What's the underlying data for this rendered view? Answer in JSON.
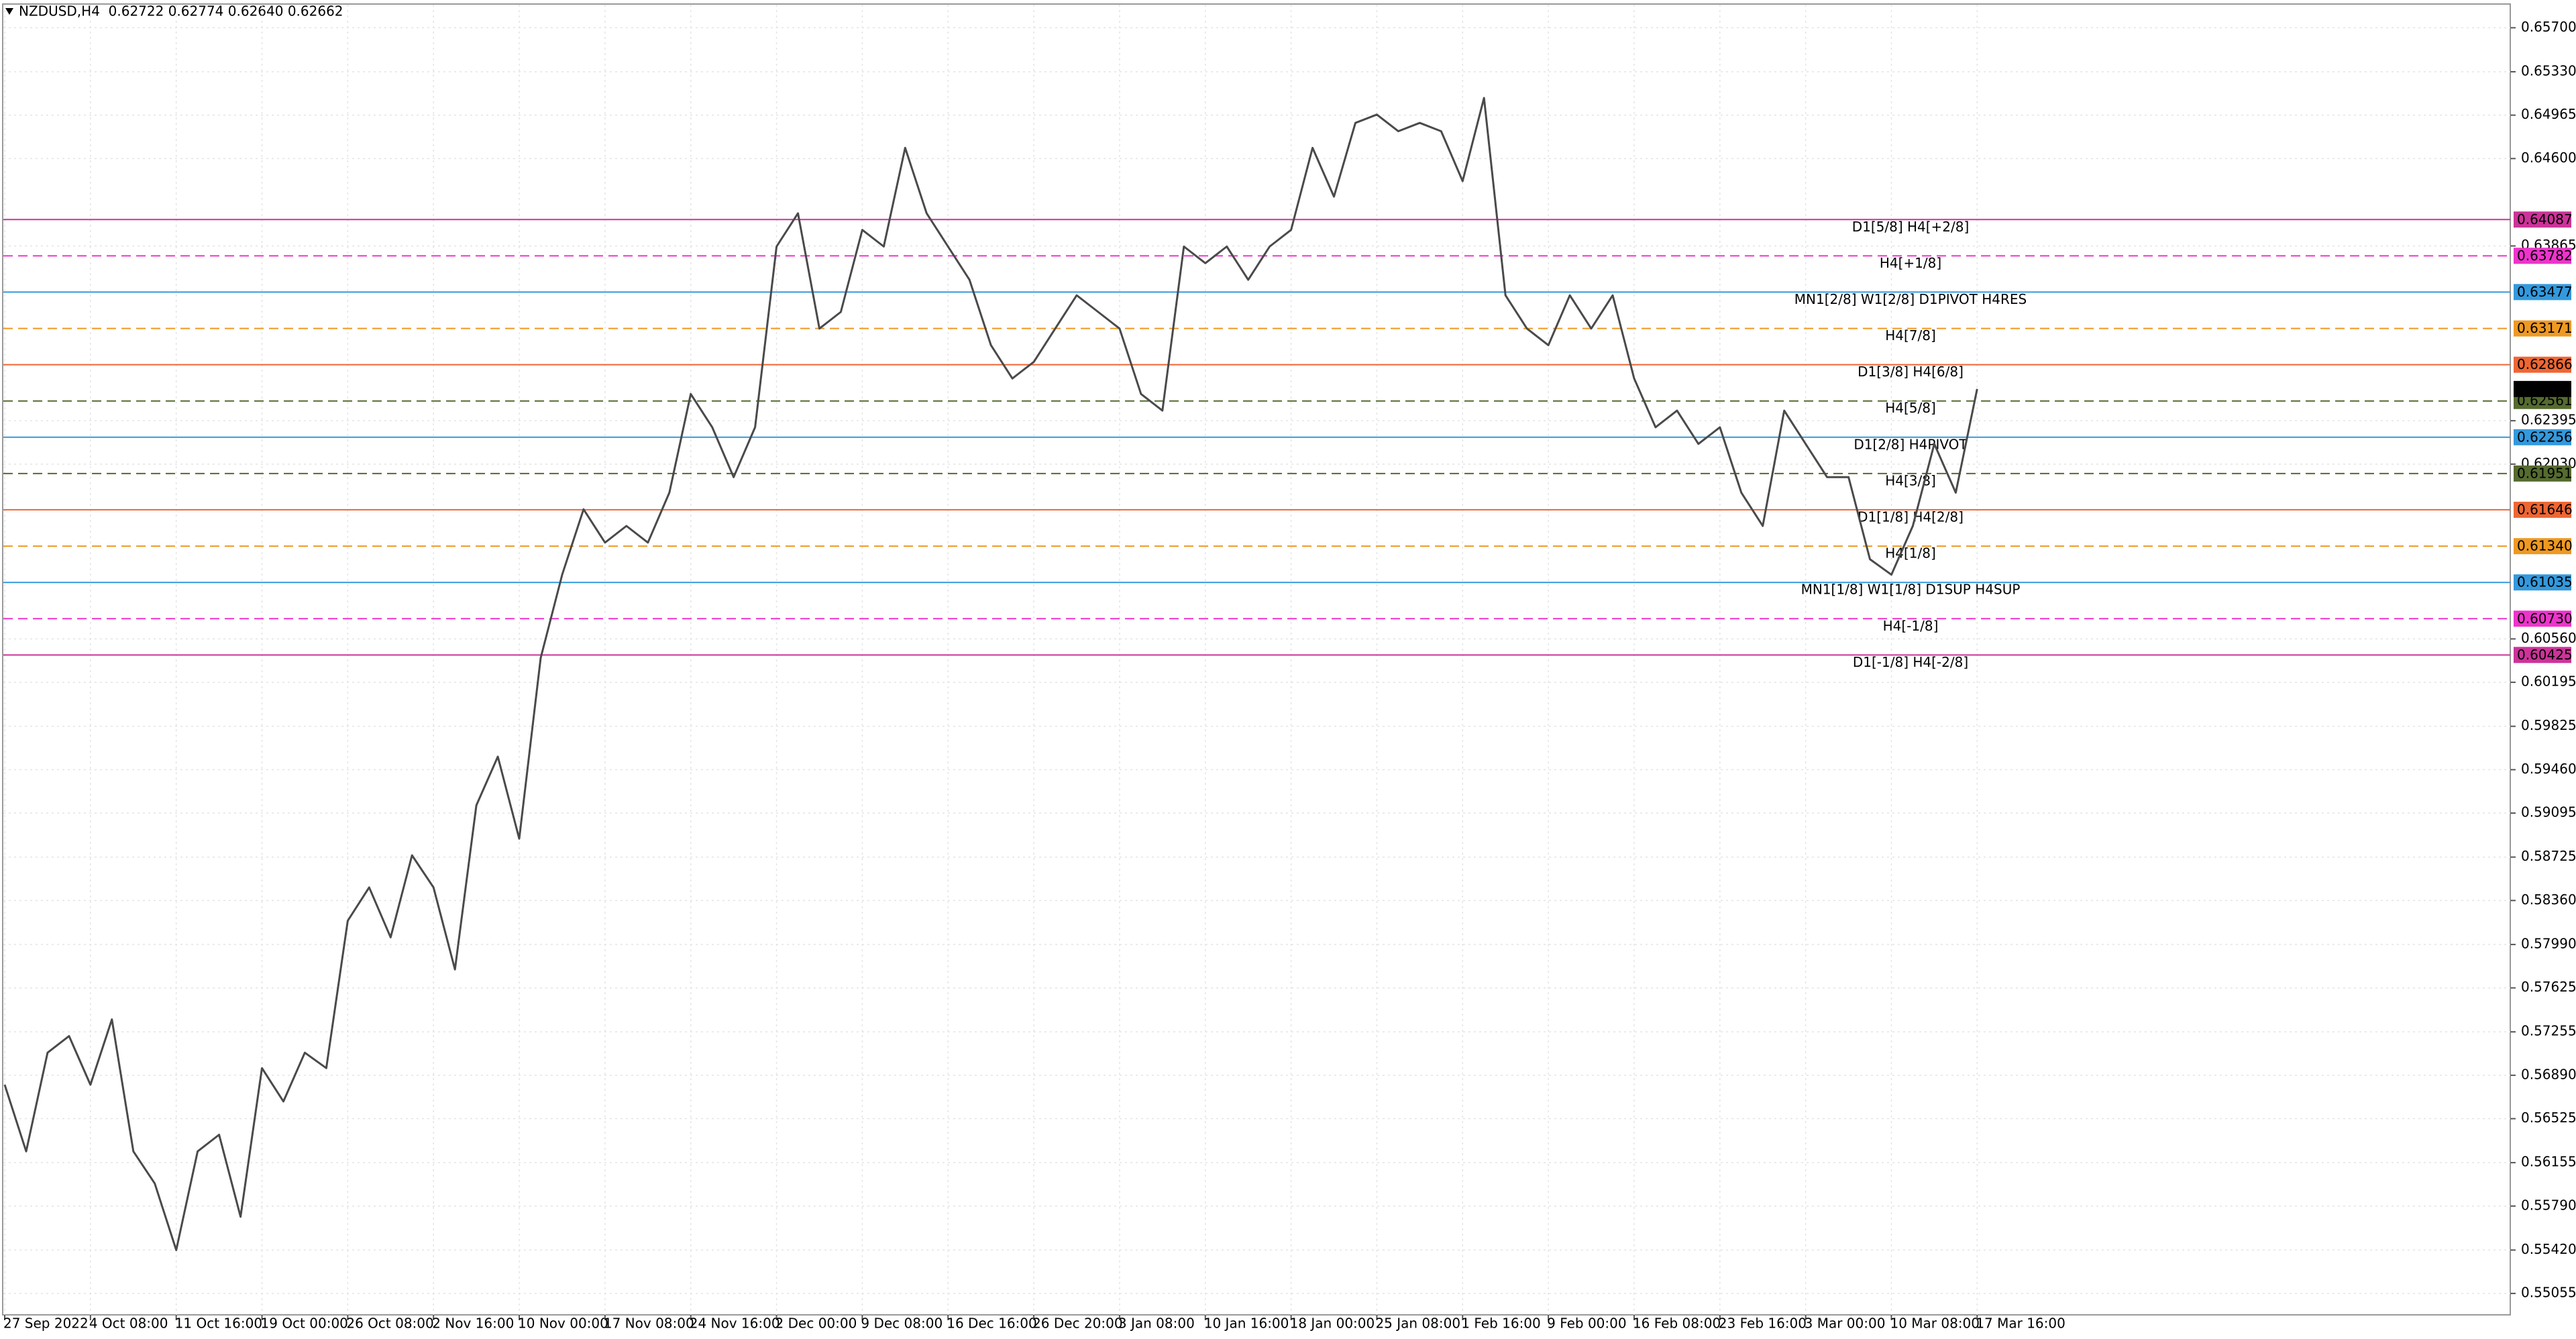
{
  "chart_data": {
    "type": "line",
    "title": "NZDUSD,H4  0.62722 0.62774 0.62640 0.62662",
    "categories": [
      "27 Sep 2022",
      null,
      null,
      null,
      "4 Oct 08:00",
      null,
      null,
      null,
      "11 Oct 16:00",
      null,
      null,
      null,
      "19 Oct 00:00",
      null,
      null,
      null,
      "26 Oct 08:00",
      null,
      null,
      null,
      "2 Nov 16:00",
      null,
      null,
      null,
      "10 Nov 00:00",
      null,
      null,
      null,
      "17 Nov 08:00",
      null,
      null,
      null,
      "24 Nov 16:00",
      null,
      null,
      null,
      "2 Dec 00:00",
      null,
      null,
      null,
      "9 Dec 08:00",
      null,
      null,
      null,
      "16 Dec 16:00",
      null,
      null,
      null,
      "26 Dec 20:00",
      null,
      null,
      null,
      "3 Jan 08:00",
      null,
      null,
      null,
      "10 Jan 16:00",
      null,
      null,
      null,
      "18 Jan 00:00",
      null,
      null,
      null,
      "25 Jan 08:00",
      null,
      null,
      null,
      "1 Feb 16:00",
      null,
      null,
      null,
      "9 Feb 00:00",
      null,
      null,
      null,
      "16 Feb 08:00",
      null,
      null,
      null,
      "23 Feb 16:00",
      null,
      null,
      null,
      "3 Mar 00:00",
      null,
      null,
      null,
      "10 Mar 08:00",
      null,
      null,
      null,
      "17 Mar 16:00"
    ],
    "series": [
      {
        "color": "#4a4a4a",
        "values": [
          0.5681,
          0.5625,
          0.5708,
          0.5722,
          0.5681,
          0.5736,
          0.5625,
          0.5598,
          0.5542,
          0.5625,
          0.5639,
          0.557,
          0.5695,
          0.5667,
          0.5708,
          0.5695,
          0.5819,
          0.5847,
          0.5805,
          0.5874,
          0.5847,
          0.5778,
          0.5916,
          0.5957,
          0.5888,
          0.604,
          0.611,
          0.6165,
          0.6137,
          0.6151,
          0.6137,
          0.6179,
          0.6262,
          0.6234,
          0.6192,
          0.6234,
          0.6386,
          0.6414,
          0.6317,
          0.6331,
          0.64,
          0.6386,
          0.6469,
          0.6414,
          0.6386,
          0.6358,
          0.6303,
          0.6275,
          0.6289,
          0.6317,
          0.6345,
          0.6331,
          0.6317,
          0.6262,
          0.6248,
          0.6386,
          0.6372,
          0.6386,
          0.6358,
          0.6386,
          0.64,
          0.6469,
          0.6428,
          0.649,
          0.6497,
          0.6483,
          0.649,
          0.6483,
          0.6441,
          0.6511,
          0.6345,
          0.6317,
          0.6303,
          0.6345,
          0.6317,
          0.6345,
          0.6275,
          0.6234,
          0.6248,
          0.622,
          0.6234,
          0.6179,
          0.6151,
          0.6248,
          0.622,
          0.6192,
          0.6192,
          0.6123,
          0.611,
          0.6151,
          0.622,
          0.6179,
          0.62662
        ]
      }
    ],
    "ylim": [
      0.54875,
      0.65894
    ],
    "yticks": [
      {
        "value": 0.657,
        "label": "0.65700"
      },
      {
        "value": 0.6533,
        "label": "0.65330"
      },
      {
        "value": 0.64965,
        "label": "0.64965"
      },
      {
        "value": 0.646,
        "label": "0.64600"
      },
      {
        "value": 0.63865,
        "label": "0.63865"
      },
      {
        "value": 0.62395,
        "label": "0.62395"
      },
      {
        "value": 0.6203,
        "label": "0.62030"
      },
      {
        "value": 0.6056,
        "label": "0.60560"
      },
      {
        "value": 0.60195,
        "label": "0.60195"
      },
      {
        "value": 0.59825,
        "label": "0.59825"
      },
      {
        "value": 0.5946,
        "label": "0.59460"
      },
      {
        "value": 0.59095,
        "label": "0.59095"
      },
      {
        "value": 0.58725,
        "label": "0.58725"
      },
      {
        "value": 0.5836,
        "label": "0.58360"
      },
      {
        "value": 0.5799,
        "label": "0.57990"
      },
      {
        "value": 0.57625,
        "label": "0.57625"
      },
      {
        "value": 0.57255,
        "label": "0.57255"
      },
      {
        "value": 0.5689,
        "label": "0.56890"
      },
      {
        "value": 0.56525,
        "label": "0.56525"
      },
      {
        "value": 0.56155,
        "label": "0.56155"
      },
      {
        "value": 0.5579,
        "label": "0.55790"
      },
      {
        "value": 0.5542,
        "label": "0.55420"
      },
      {
        "value": 0.55055,
        "label": "0.55055"
      }
    ],
    "grid": true,
    "levels": [
      {
        "value": 0.64087,
        "value_label": "0.64087",
        "label": "D1[5/8] H4[+2/8]",
        "color": "#cc3399",
        "style": "solid"
      },
      {
        "value": 0.63782,
        "value_label": "0.63782",
        "label": "H4[+1/8]",
        "color": "#ee33cc",
        "style": "dashed"
      },
      {
        "value": 0.63477,
        "value_label": "0.63477",
        "label": "MN1[2/8] W1[2/8] D1PIVOT H4RES",
        "color": "#3399dd",
        "style": "solid"
      },
      {
        "value": 0.63171,
        "value_label": "0.63171",
        "label": "H4[7/8]",
        "color": "#ee9922",
        "style": "dashed"
      },
      {
        "value": 0.62866,
        "value_label": "0.62866",
        "label": "D1[3/8] H4[6/8]",
        "color": "#ee6633",
        "style": "solid"
      },
      {
        "value": 0.62561,
        "value_label": "0.62561",
        "label": "H4[5/8]",
        "color": "#556b2f",
        "style": "dashed"
      },
      {
        "value": 0.62256,
        "value_label": "0.62256",
        "label": "D1[2/8] H4PIVOT",
        "color": "#3399dd",
        "style": "solid"
      },
      {
        "value": 0.61951,
        "value_label": "0.61951",
        "label": "H4[3/8]",
        "color": "#556b2f",
        "style": "dashed"
      },
      {
        "value": 0.61646,
        "value_label": "0.61646",
        "label": "D1[1/8] H4[2/8]",
        "color": "#ee6633",
        "style": "solid"
      },
      {
        "value": 0.6134,
        "value_label": "0.61340",
        "label": "H4[1/8]",
        "color": "#ee9922",
        "style": "dashed"
      },
      {
        "value": 0.61035,
        "value_label": "0.61035",
        "label": "MN1[1/8] W1[1/8] D1SUP H4SUP",
        "color": "#3399dd",
        "style": "solid"
      },
      {
        "value": 0.6073,
        "value_label": "0.60730",
        "label": "H4[-1/8]",
        "color": "#ee33cc",
        "style": "dashed"
      },
      {
        "value": 0.60425,
        "value_label": "0.60425",
        "label": "D1[-1/8] H4[-2/8]",
        "color": "#cc3399",
        "style": "solid"
      }
    ]
  }
}
